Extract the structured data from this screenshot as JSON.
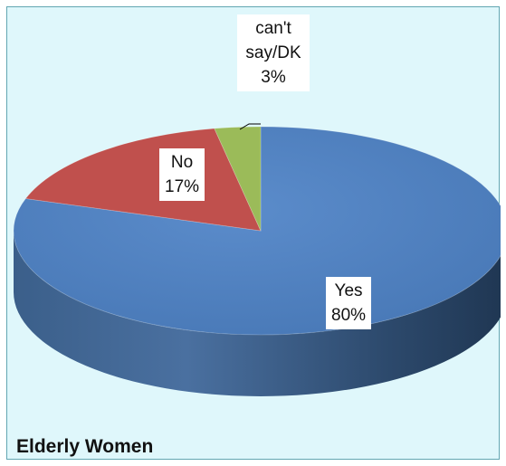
{
  "chart_data": {
    "type": "pie",
    "title": "Elderly Women",
    "slices": [
      {
        "label": "Yes",
        "value": 80,
        "value_label": "80%",
        "color": "#4f81bd"
      },
      {
        "label": "No",
        "value": 17,
        "value_label": "17%",
        "color": "#c0504d"
      },
      {
        "label": "can't say/DK",
        "value": 3,
        "value_label": "3%",
        "color": "#9bbb59"
      }
    ],
    "style": "3d"
  },
  "frame": {
    "background": "#dff7fb",
    "border_color": "#62a6b2"
  }
}
